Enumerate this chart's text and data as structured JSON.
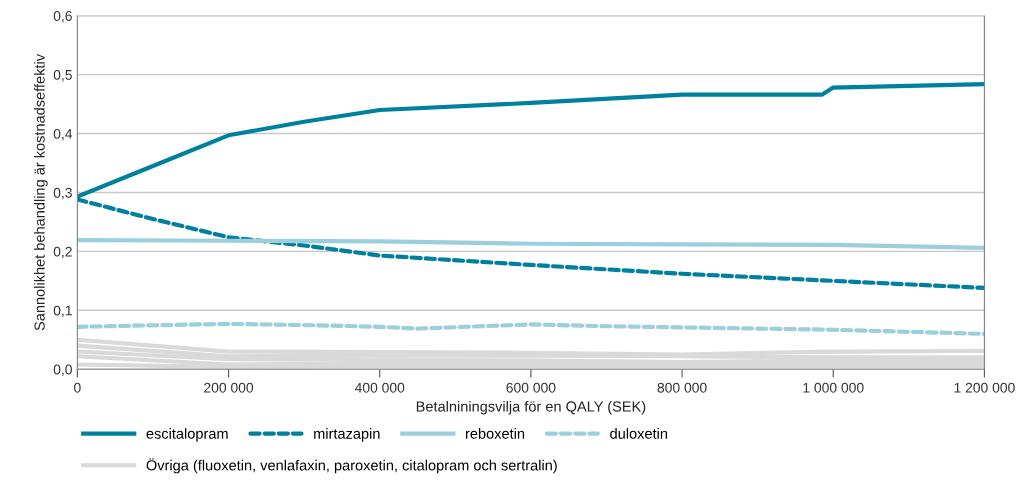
{
  "chart_data": {
    "type": "line",
    "xlabel": "Betalniningsvilja för en QALY (SEK)",
    "ylabel": "Sannolikhet behandling är kostnadseffektiv",
    "xlim": [
      0,
      1200000
    ],
    "ylim": [
      0,
      0.6
    ],
    "xticks": [
      {
        "value": 0,
        "label": "0"
      },
      {
        "value": 200000,
        "label": "200 000"
      },
      {
        "value": 400000,
        "label": "400 000"
      },
      {
        "value": 600000,
        "label": "600 000"
      },
      {
        "value": 800000,
        "label": "800 000"
      },
      {
        "value": 1000000,
        "label": "1 000 000"
      },
      {
        "value": 1200000,
        "label": "1 200 000"
      }
    ],
    "yticks": [
      {
        "value": 0,
        "label": "0,0"
      },
      {
        "value": 0.1,
        "label": "0,1"
      },
      {
        "value": 0.2,
        "label": "0,2"
      },
      {
        "value": 0.3,
        "label": "0,3"
      },
      {
        "value": 0.4,
        "label": "0,4"
      },
      {
        "value": 0.5,
        "label": "0,5"
      },
      {
        "value": 0.6,
        "label": "0,6"
      }
    ],
    "grid": "y",
    "legend": "bottom",
    "series": [
      {
        "name": "escitalopram",
        "color": "#00809f",
        "line_style": "solid",
        "x": [
          0,
          100000,
          200000,
          300000,
          400000,
          600000,
          800000,
          985000,
          1000000,
          1200000
        ],
        "values": [
          0.293,
          0.345,
          0.397,
          0.42,
          0.44,
          0.452,
          0.466,
          0.466,
          0.478,
          0.484
        ]
      },
      {
        "name": "mirtazapin",
        "color": "#00809f",
        "line_style": "dashed",
        "x": [
          0,
          100000,
          200000,
          300000,
          400000,
          600000,
          800000,
          1000000,
          1200000
        ],
        "values": [
          0.288,
          0.255,
          0.224,
          0.21,
          0.193,
          0.177,
          0.162,
          0.15,
          0.138
        ]
      },
      {
        "name": "reboxetin",
        "color": "#9ccfdd",
        "line_style": "solid",
        "x": [
          0,
          200000,
          400000,
          600000,
          800000,
          1000000,
          1200000
        ],
        "values": [
          0.219,
          0.218,
          0.217,
          0.213,
          0.212,
          0.211,
          0.206
        ]
      },
      {
        "name": "duloxetin",
        "color": "#9ccfdd",
        "line_style": "dashed",
        "x": [
          0,
          200000,
          300000,
          400000,
          450000,
          600000,
          700000,
          1000000,
          1200000
        ],
        "values": [
          0.072,
          0.077,
          0.075,
          0.072,
          0.069,
          0.076,
          0.073,
          0.067,
          0.06
        ]
      },
      {
        "name": "Övriga (fluoxetin, venlafaxin, paroxetin, citalopram och sertralin)",
        "color": "#d9d9d9",
        "line_style": "solid",
        "x": [
          0,
          200000,
          400000,
          600000,
          800000,
          1000000,
          1200000
        ],
        "values": [
          0.05,
          0.03,
          0.029,
          0.028,
          0.025,
          0.03,
          0.031
        ]
      },
      {
        "color": "#d9d9d9",
        "line_style": "solid",
        "x": [
          0,
          200000,
          400000,
          600000,
          800000,
          1000000,
          1200000
        ],
        "values": [
          0.04,
          0.022,
          0.023,
          0.023,
          0.022,
          0.02,
          0.02
        ]
      },
      {
        "color": "#d9d9d9",
        "line_style": "solid",
        "x": [
          0,
          200000,
          400000,
          600000,
          800000,
          1000000,
          1200000
        ],
        "values": [
          0.03,
          0.017,
          0.016,
          0.015,
          0.012,
          0.015,
          0.016
        ]
      },
      {
        "color": "#d9d9d9",
        "line_style": "solid",
        "x": [
          0,
          200000,
          400000,
          600000,
          800000,
          1000000,
          1200000
        ],
        "values": [
          0.022,
          0.008,
          0.01,
          0.01,
          0.008,
          0.01,
          0.01
        ]
      },
      {
        "color": "#d9d9d9",
        "line_style": "solid",
        "x": [
          0,
          200000,
          400000,
          600000,
          800000,
          1000000,
          1200000
        ],
        "values": [
          0.008,
          0.004,
          0.005,
          0.005,
          0.005,
          0.005,
          0.005
        ]
      }
    ]
  }
}
